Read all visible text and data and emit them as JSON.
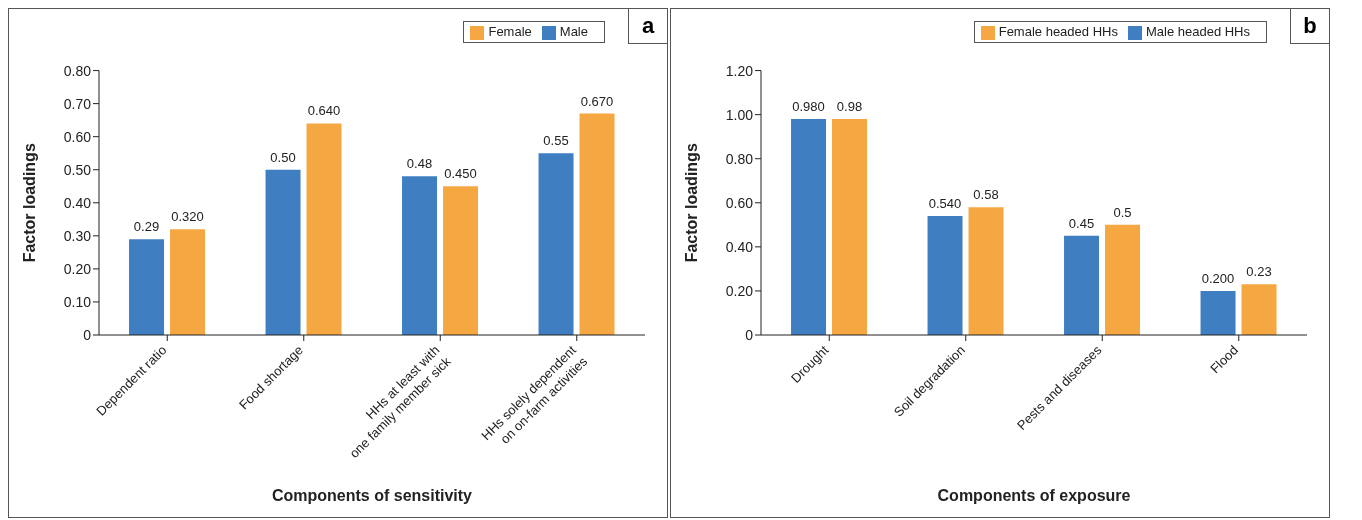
{
  "chart_data": [
    {
      "type": "bar",
      "annotations": [
        "a"
      ],
      "xlabel": "Components of sensitivity",
      "ylabel": "Factor loadings",
      "categories": [
        "Dependent ratio",
        "Food shortage",
        "HHs at least with\none family member sick",
        "HHs solely dependent\non on-farm activities"
      ],
      "series": [
        {
          "name": "Male",
          "color": "#3f7fc1",
          "values": [
            0.29,
            0.5,
            0.48,
            0.55
          ],
          "value_labels": [
            "0.29",
            "0.50",
            "0.48",
            "0.55"
          ]
        },
        {
          "name": "Female",
          "color": "#f5a742",
          "values": [
            0.32,
            0.64,
            0.45,
            0.67
          ],
          "value_labels": [
            "0.320",
            "0.640",
            "0.450",
            "0.670"
          ]
        }
      ],
      "ylim": [
        0,
        0.8
      ],
      "yticks": [
        0,
        {
          "value": 0.1,
          "label": "0.10"
        },
        {
          "value": 0.2,
          "label": "0.20"
        },
        {
          "value": 0.3,
          "label": "0.30"
        },
        {
          "value": 0.4,
          "label": "0.40"
        },
        {
          "value": 0.5,
          "label": "0.50"
        },
        {
          "value": 0.6,
          "label": "0.60"
        },
        {
          "value": 0.7,
          "label": "0.70"
        },
        {
          "value": 0.8,
          "label": "0.80"
        }
      ],
      "grid": false,
      "legend": "top right"
    },
    {
      "type": "bar",
      "annotations": [
        "b"
      ],
      "xlabel": "Components of exposure",
      "ylabel": "Factor loadings",
      "categories": [
        "Drought",
        "Soil degradation",
        "Pests and diseases",
        "Flood"
      ],
      "series": [
        {
          "name": "Male headed HHs",
          "color": "#3f7fc1",
          "values": [
            0.98,
            0.54,
            0.45,
            0.2
          ],
          "value_labels": [
            "0.980",
            "0.540",
            "0.45",
            "0.200"
          ]
        },
        {
          "name": "Female headed HHs",
          "color": "#f5a742",
          "values": [
            0.98,
            0.58,
            0.5,
            0.23
          ],
          "value_labels": [
            "0.98",
            "0.58",
            "0.5",
            "0.23"
          ]
        }
      ],
      "ylim": [
        0,
        1.2
      ],
      "yticks": [
        0,
        {
          "value": 0.2,
          "label": "0.20"
        },
        {
          "value": 0.4,
          "label": "0.40"
        },
        {
          "value": 0.6,
          "label": "0.60"
        },
        {
          "value": 0.8,
          "label": "0.80"
        },
        {
          "value": 1,
          "label": "1.00"
        },
        {
          "value": 1.2,
          "label": "1.20"
        }
      ],
      "grid": false,
      "legend": "top right"
    }
  ]
}
